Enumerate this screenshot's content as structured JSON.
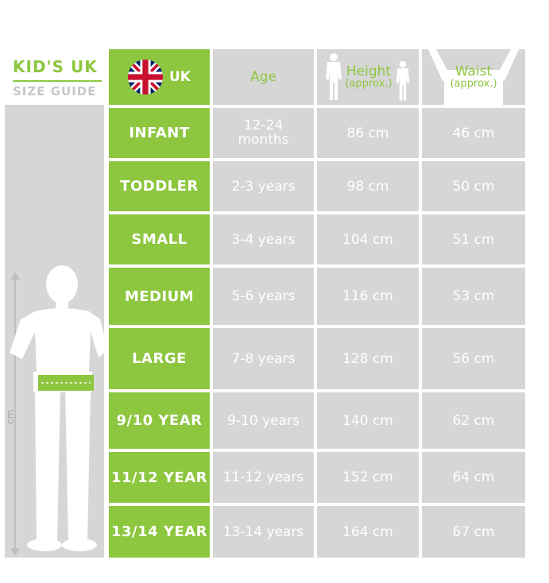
{
  "guide": {
    "title": "KID'S UK",
    "subtitle": "SIZE GUIDE",
    "axis_unit": "cm"
  },
  "header": {
    "uk": "UK",
    "age": "Age",
    "height": "Height",
    "height_sub": "(approx.)",
    "waist": "Waist",
    "waist_sub": "(approx.)"
  },
  "rows": [
    {
      "size": "INFANT",
      "age": "12-24 months",
      "height": "86 cm",
      "waist": "46 cm"
    },
    {
      "size": "TODDLER",
      "age": "2-3 years",
      "height": "98 cm",
      "waist": "50 cm"
    },
    {
      "size": "SMALL",
      "age": "3-4 years",
      "height": "104 cm",
      "waist": "51 cm"
    },
    {
      "size": "MEDIUM",
      "age": "5-6 years",
      "height": "116 cm",
      "waist": "53 cm"
    },
    {
      "size": "LARGE",
      "age": "7-8 years",
      "height": "128 cm",
      "waist": "56 cm"
    },
    {
      "size": "9/10 YEAR",
      "age": "9-10 years",
      "height": "140 cm",
      "waist": "62 cm"
    },
    {
      "size": "11/12 YEAR",
      "age": "11-12 years",
      "height": "152 cm",
      "waist": "64 cm"
    },
    {
      "size": "13/14 YEAR",
      "age": "13-14 years",
      "height": "164 cm",
      "waist": "67 cm"
    }
  ],
  "icons": {
    "flag": "uk-flag-icon",
    "height": "child-height-icon",
    "waist": "child-waist-icon",
    "figure": "child-silhouette-icon"
  },
  "colors": {
    "accent": "#8dc63f",
    "cell": "#d6d6d6",
    "text": "#ffffff"
  }
}
